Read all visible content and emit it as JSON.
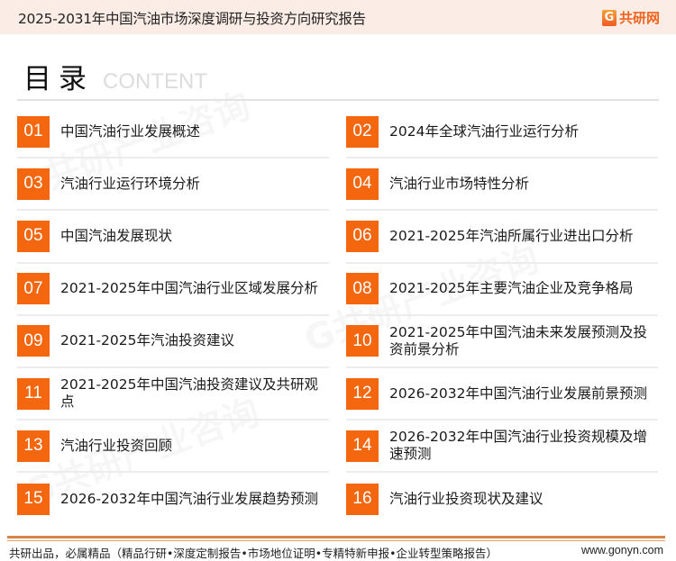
{
  "header": {
    "title": "2025-2031年中国汽油市场深度调研与投资方向研究报告",
    "logo_mark": "G",
    "logo_text": "共研网"
  },
  "toc": {
    "title": "目录",
    "title_en": "CONTENT"
  },
  "accent_color": "#f4670f",
  "items": [
    {
      "num": "01",
      "label": "中国汽油行业发展概述"
    },
    {
      "num": "02",
      "label": "2024年全球汽油行业运行分析"
    },
    {
      "num": "03",
      "label": "汽油行业运行环境分析"
    },
    {
      "num": "04",
      "label": "汽油行业市场特性分析"
    },
    {
      "num": "05",
      "label": "中国汽油发展现状"
    },
    {
      "num": "06",
      "label": "2021-2025年汽油所属行业进出口分析"
    },
    {
      "num": "07",
      "label": "2021-2025年中国汽油行业区域发展分析"
    },
    {
      "num": "08",
      "label": "2021-2025年主要汽油企业及竞争格局"
    },
    {
      "num": "09",
      "label": "2021-2025年汽油投资建议"
    },
    {
      "num": "10",
      "label": "2021-2025年中国汽油未来发展预测及投资前景分析"
    },
    {
      "num": "11",
      "label": "2021-2025年中国汽油投资建议及共研观点"
    },
    {
      "num": "12",
      "label": "2026-2032年中国汽油行业发展前景预测"
    },
    {
      "num": "13",
      "label": "汽油行业投资回顾"
    },
    {
      "num": "14",
      "label": "2026-2032年中国汽油行业投资规模及增速预测"
    },
    {
      "num": "15",
      "label": "2026-2032年中国汽油行业发展趋势预测"
    },
    {
      "num": "16",
      "label": "汽油行业投资现状及建议"
    }
  ],
  "footer": {
    "slogan": "共研出品，必属精品（精品行研•深度定制报告•市场地位证明•专精特新申报•企业转型策略报告）",
    "website": "www.gonyn.com"
  },
  "watermark": "共研产业咨询"
}
